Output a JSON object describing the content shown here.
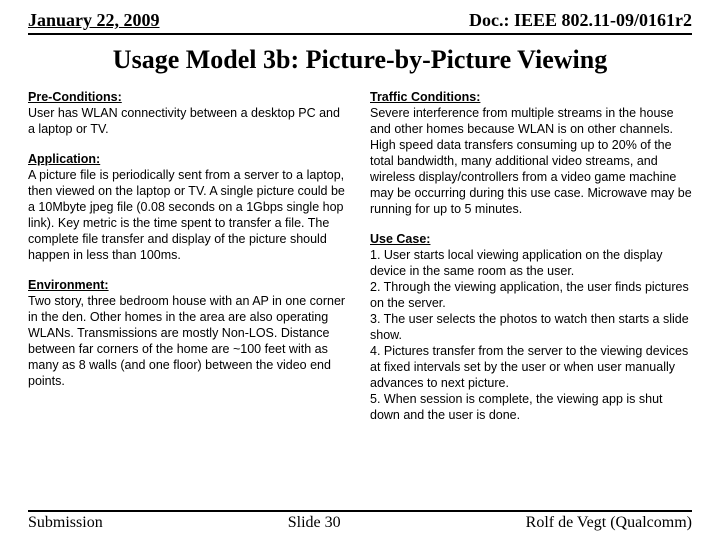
{
  "header": {
    "left": "January 22, 2009",
    "right": "Doc.: IEEE 802.11-09/0161r2"
  },
  "title": "Usage Model 3b: Picture-by-Picture Viewing",
  "left_col": {
    "pre_h": "Pre-Conditions:",
    "pre_t": "User has WLAN connectivity between a desktop PC and a laptop or TV.",
    "app_h": "Application:",
    "app_t": "A picture file is periodically sent from a server to a laptop, then viewed on the laptop or TV. A single picture could be a 10Mbyte jpeg file (0.08 seconds on a 1Gbps single hop link). Key metric is the time spent to transfer a file. The complete file transfer and display of the picture should happen in less than 100ms.",
    "env_h": "Environment:",
    "env_t": "Two story, three bedroom house with an AP in one corner in the den. Other homes in the area are also operating WLANs. Transmissions are mostly Non-LOS. Distance between far corners of the home are ~100 feet with as many as 8 walls (and one floor) between the video end points."
  },
  "right_col": {
    "tc_h": "Traffic Conditions:",
    "tc_t": "Severe interference from multiple streams in the house and other homes because WLAN is on other channels. High speed data transfers consuming up to 20% of the total bandwidth, many additional video streams, and wireless display/controllers from a video game machine may be occurring during this use case. Microwave may be running for up to 5 minutes.",
    "uc_h": "Use Case:",
    "uc1": "1. User starts local viewing application on the display device in the same room as the user.",
    "uc2": "2. Through the viewing application, the user finds pictures on the server.",
    "uc3": "3. The user selects the photos to watch then starts a slide show.",
    "uc4": "4. Pictures transfer from the server to the viewing devices at fixed intervals set by the user or when user manually advances to next picture.",
    "uc5": "5. When session is complete, the viewing app is shut down and the user is done."
  },
  "footer": {
    "left": "Submission",
    "center": "Slide 30",
    "right": "Rolf de Vegt (Qualcomm)"
  }
}
